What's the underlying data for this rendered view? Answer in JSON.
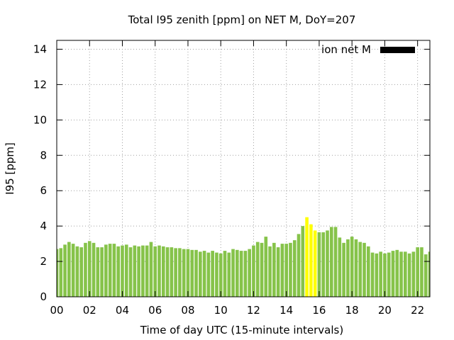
{
  "chart_data": {
    "type": "bar",
    "title": "Total I95 zenith [ppm] on NET M, DoY=207",
    "xlabel": "Time of day UTC (15-minute intervals)",
    "ylabel": "I95 [ppm]",
    "legend": {
      "label": "ion net M",
      "placement": "top-right",
      "color": "#000000"
    },
    "xlim": [
      0,
      22.75
    ],
    "ylim": [
      0,
      14.5
    ],
    "xticks": [
      "00",
      "02",
      "04",
      "06",
      "08",
      "10",
      "12",
      "14",
      "16",
      "18",
      "20",
      "22"
    ],
    "xtick_values": [
      0,
      2,
      4,
      6,
      8,
      10,
      12,
      14,
      16,
      18,
      20,
      22
    ],
    "yticks": [
      0,
      2,
      4,
      6,
      8,
      10,
      12,
      14
    ],
    "grid": true,
    "bar_width_hours": 0.2,
    "colors": {
      "normal": "#86c34a",
      "highlight": "#ffff00"
    },
    "highlight_range_hours": [
      15.25,
      15.75
    ],
    "values": [
      2.7,
      2.75,
      2.95,
      3.1,
      3.0,
      2.85,
      2.8,
      3.05,
      3.15,
      3.05,
      2.8,
      2.8,
      2.95,
      3.0,
      3.0,
      2.85,
      2.9,
      2.95,
      2.8,
      2.9,
      2.85,
      2.9,
      2.9,
      3.1,
      2.85,
      2.9,
      2.85,
      2.8,
      2.8,
      2.75,
      2.75,
      2.7,
      2.7,
      2.65,
      2.65,
      2.55,
      2.6,
      2.5,
      2.6,
      2.5,
      2.45,
      2.6,
      2.5,
      2.7,
      2.65,
      2.6,
      2.6,
      2.7,
      2.9,
      3.1,
      3.05,
      3.4,
      2.85,
      3.05,
      2.8,
      3.0,
      3.0,
      3.05,
      3.2,
      3.55,
      4.0,
      4.5,
      4.1,
      3.75,
      3.65,
      3.65,
      3.75,
      3.95,
      3.95,
      3.35,
      3.05,
      3.25,
      3.4,
      3.25,
      3.1,
      3.05,
      2.85,
      2.5,
      2.45,
      2.55,
      2.45,
      2.5,
      2.6,
      2.65,
      2.55,
      2.55,
      2.45,
      2.55,
      2.8,
      2.8,
      2.4,
      2.55
    ]
  }
}
